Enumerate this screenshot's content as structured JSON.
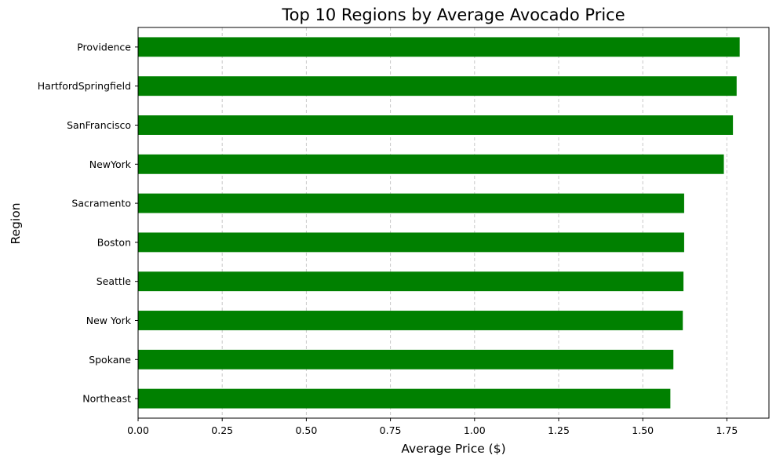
{
  "chart_data": {
    "type": "bar",
    "orientation": "horizontal",
    "title": "Top 10 Regions by Average Avocado Price",
    "xlabel": "Average Price ($)",
    "ylabel": "Region",
    "categories": [
      "Providence",
      "HartfordSpringfield",
      "SanFrancisco",
      "NewYork",
      "Sacramento",
      "Boston",
      "Seattle",
      "New York",
      "Spokane",
      "Northeast"
    ],
    "values": [
      1.788,
      1.779,
      1.768,
      1.741,
      1.623,
      1.623,
      1.621,
      1.619,
      1.591,
      1.582
    ],
    "xlim": [
      0,
      1.875
    ],
    "xticks": [
      0.0,
      0.25,
      0.5,
      0.75,
      1.0,
      1.25,
      1.5,
      1.75
    ],
    "xtick_labels": [
      "0.00",
      "0.25",
      "0.50",
      "0.75",
      "1.00",
      "1.25",
      "1.50",
      "1.75"
    ],
    "grid": "vertical-dashed",
    "bar_color": "#008000",
    "grid_color": "#c8c8c8"
  }
}
